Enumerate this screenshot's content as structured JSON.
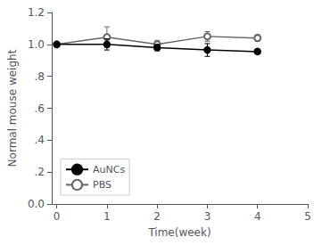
{
  "chart_data": {
    "type": "line",
    "xlabel": "Time(week)",
    "ylabel": "Normal mouse weight",
    "x": [
      0,
      1,
      2,
      3,
      4
    ],
    "series": [
      {
        "name": "AuNCs",
        "color": "#000000",
        "marker": "circle",
        "values": [
          1.0,
          1.0,
          0.98,
          0.965,
          0.955
        ],
        "yerr": [
          0.0,
          0.035,
          0.02,
          0.04,
          0.015
        ]
      },
      {
        "name": "PBS",
        "color": "#666666",
        "marker": "emptyCircle",
        "values": [
          1.0,
          1.045,
          1.0,
          1.05,
          1.04
        ],
        "yerr": [
          0.0,
          0.065,
          0.025,
          0.03,
          0.02
        ]
      }
    ],
    "xlim": [
      -0.1,
      5
    ],
    "ylim": [
      0.0,
      1.2
    ],
    "xticks": [
      0,
      1,
      2,
      3,
      4,
      5
    ],
    "yticks": [
      {
        "value": 0.0,
        "label": "0.0"
      },
      {
        "value": 0.2,
        "label": ".2"
      },
      {
        "value": 0.4,
        "label": ".4"
      },
      {
        "value": 0.6,
        "label": ".6"
      },
      {
        "value": 0.8,
        "label": ".8"
      },
      {
        "value": 1.0,
        "label": "1.0"
      },
      1.2
    ],
    "grid": false,
    "legend": "lower left"
  }
}
